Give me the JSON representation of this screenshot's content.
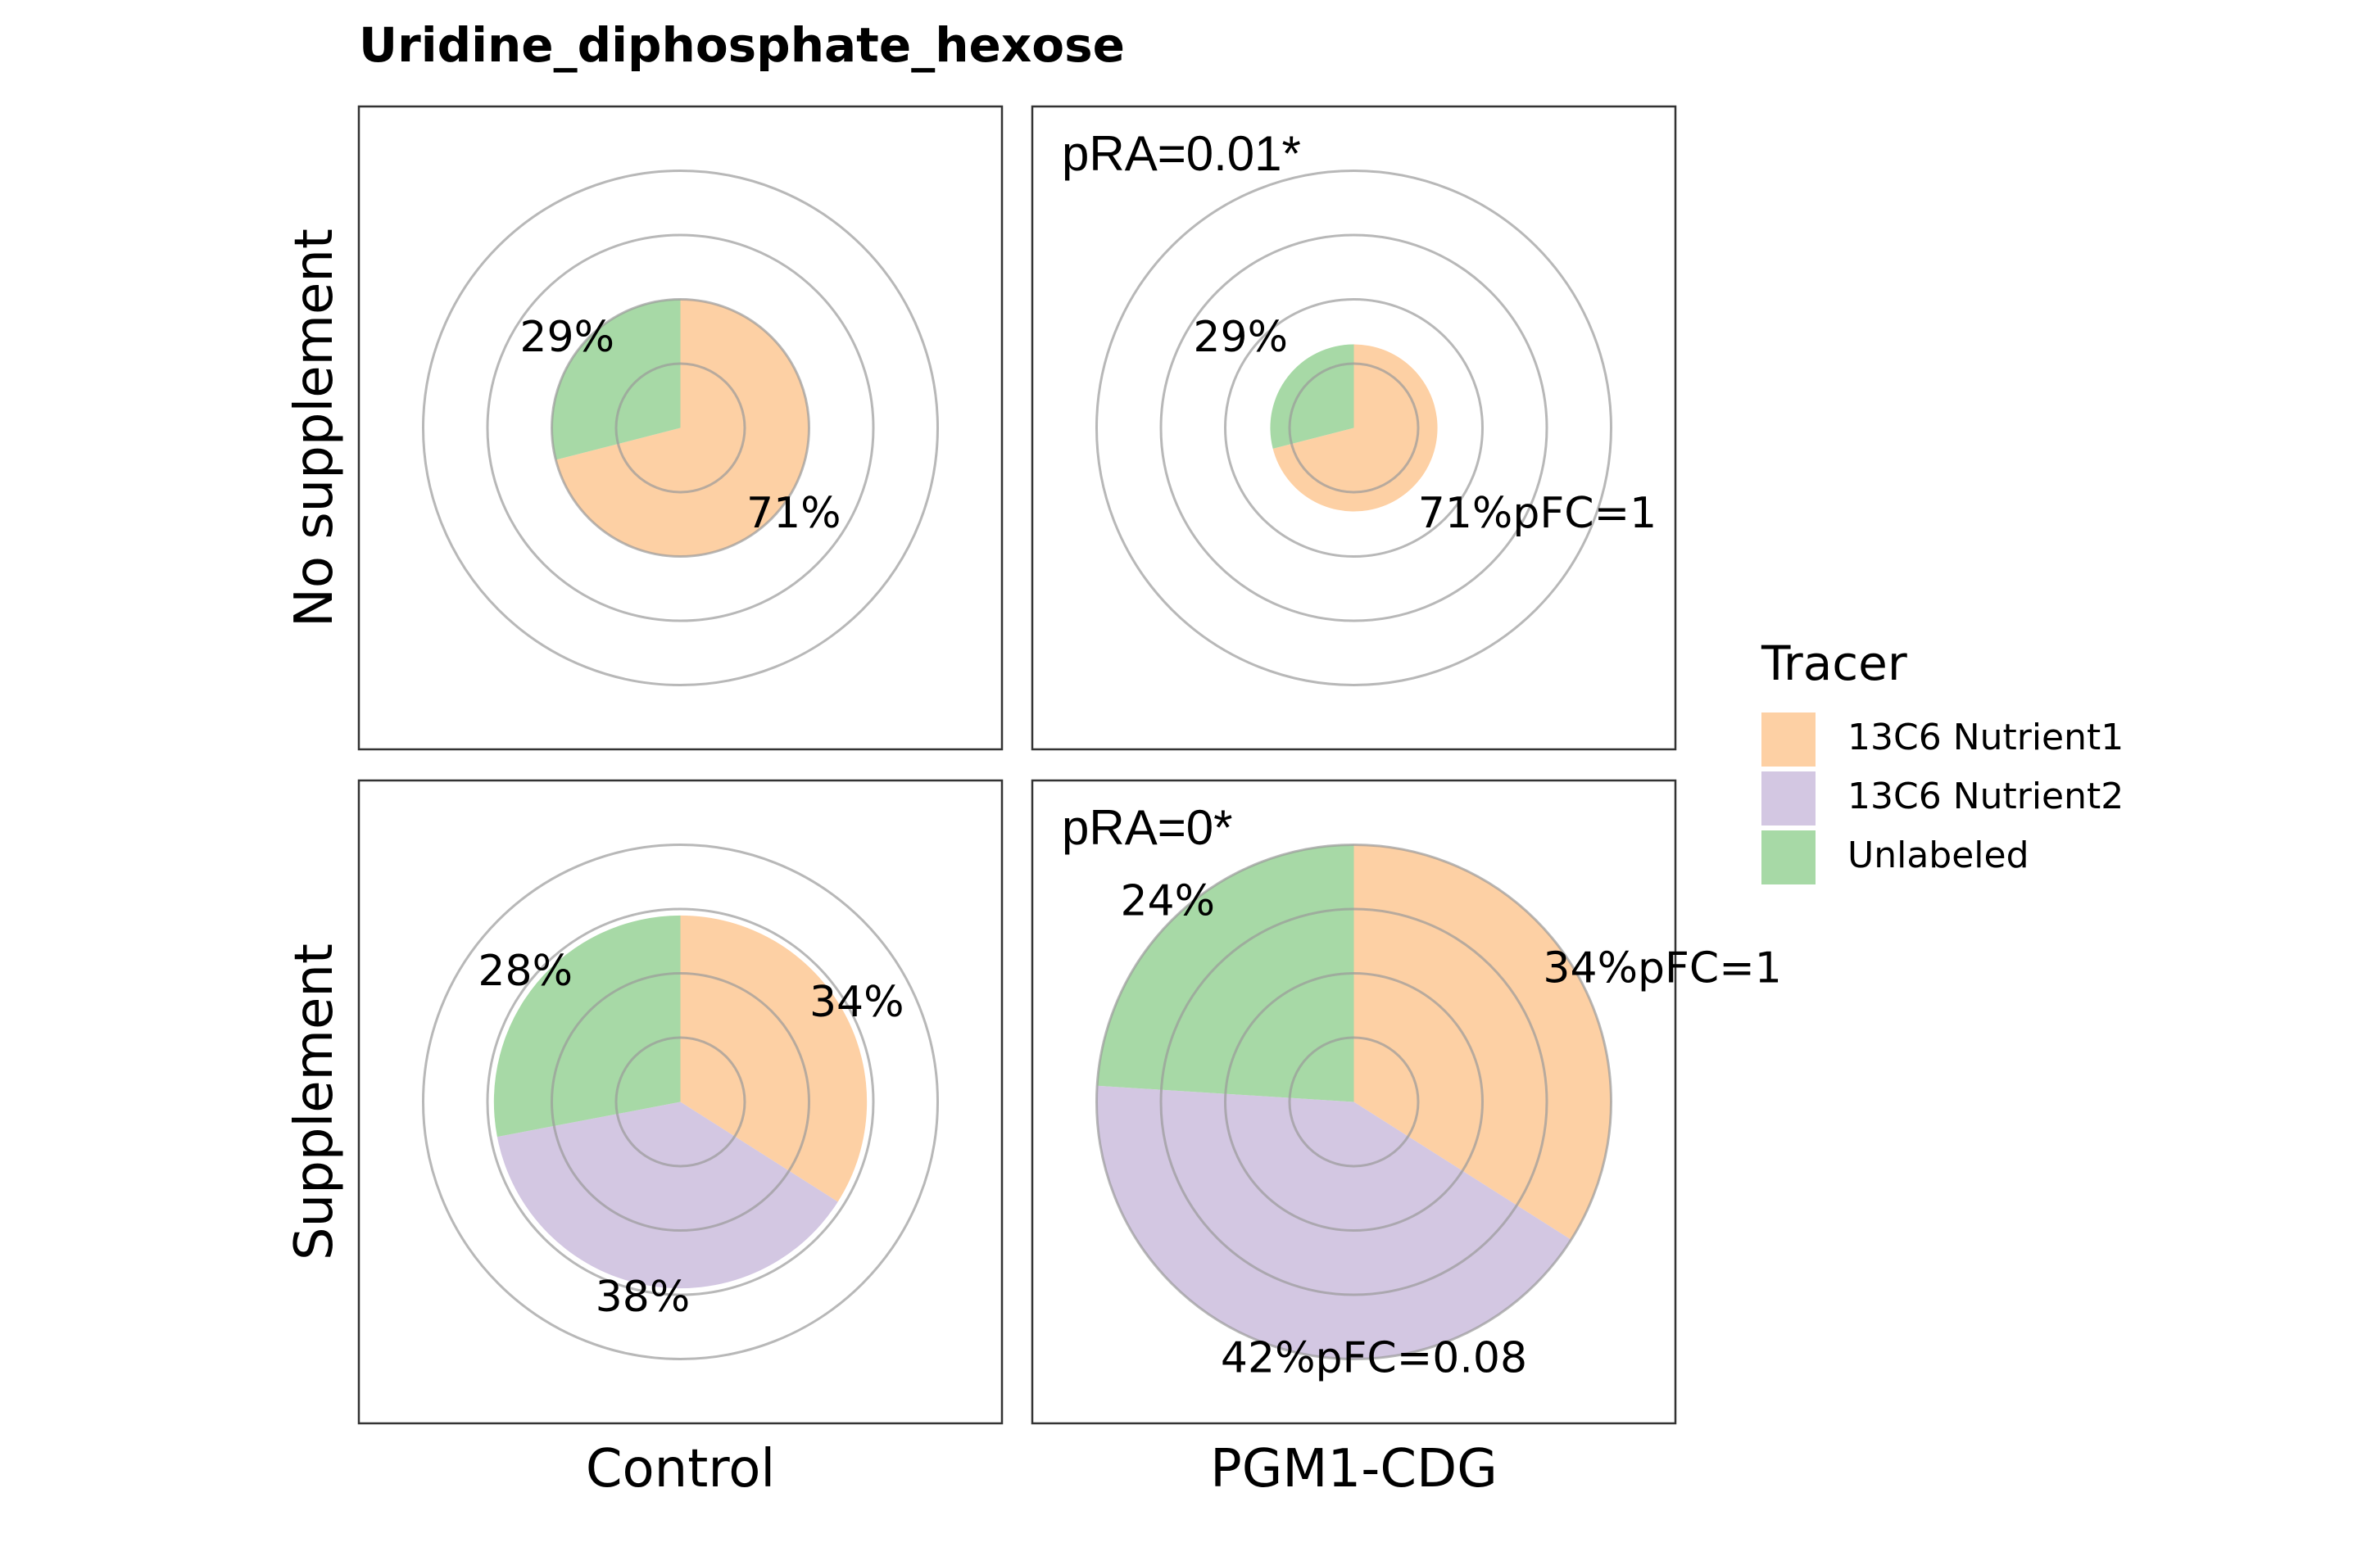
{
  "chart_data": {
    "type": "pie",
    "title": "Uridine_diphosphate_hexose",
    "description_note": "",
    "rows": [
      "No supplement",
      "Supplement"
    ],
    "columns": [
      "Control",
      "PGM1-CDG"
    ],
    "legend": {
      "title": "Tracer",
      "position": "right",
      "entries": [
        {
          "name": "13C6 Nutrient1",
          "color": "#FDD0A4"
        },
        {
          "name": "13C6 Nutrient2",
          "color": "#D3C7E2"
        },
        {
          "name": "Unlabeled",
          "color": "#A7D9A6"
        }
      ]
    },
    "radial_scale": {
      "gridline_levels": [
        0.5,
        1.0,
        1.5,
        2.0
      ],
      "max": 2.0
    },
    "panels": [
      {
        "row": "No supplement",
        "column": "Control",
        "pRA": "",
        "relative_abundance": 1.0,
        "slices": [
          {
            "tracer": "13C6 Nutrient1",
            "value": 71,
            "label": "71%",
            "pFC": ""
          },
          {
            "tracer": "Unlabeled",
            "value": 29,
            "label": "29%",
            "pFC": ""
          }
        ]
      },
      {
        "row": "No supplement",
        "column": "PGM1-CDG",
        "pRA": "pRA=0.01*",
        "relative_abundance": 0.65,
        "slices": [
          {
            "tracer": "13C6 Nutrient1",
            "value": 71,
            "label": "71%",
            "pFC": "pFC=1"
          },
          {
            "tracer": "Unlabeled",
            "value": 29,
            "label": "29%",
            "pFC": ""
          }
        ]
      },
      {
        "row": "Supplement",
        "column": "Control",
        "pRA": "",
        "relative_abundance": 1.45,
        "slices": [
          {
            "tracer": "13C6 Nutrient1",
            "value": 34,
            "label": "34%",
            "pFC": ""
          },
          {
            "tracer": "13C6 Nutrient2",
            "value": 38,
            "label": "38%",
            "pFC": ""
          },
          {
            "tracer": "Unlabeled",
            "value": 28,
            "label": "28%",
            "pFC": ""
          }
        ]
      },
      {
        "row": "Supplement",
        "column": "PGM1-CDG",
        "pRA": "pRA=0*",
        "relative_abundance": 2.0,
        "slices": [
          {
            "tracer": "13C6 Nutrient1",
            "value": 34,
            "label": "34%",
            "pFC": "pFC=1"
          },
          {
            "tracer": "13C6 Nutrient2",
            "value": 42,
            "label": "42%",
            "pFC": "pFC=0.08"
          },
          {
            "tracer": "Unlabeled",
            "value": 24,
            "label": "24%",
            "pFC": ""
          }
        ]
      }
    ]
  }
}
